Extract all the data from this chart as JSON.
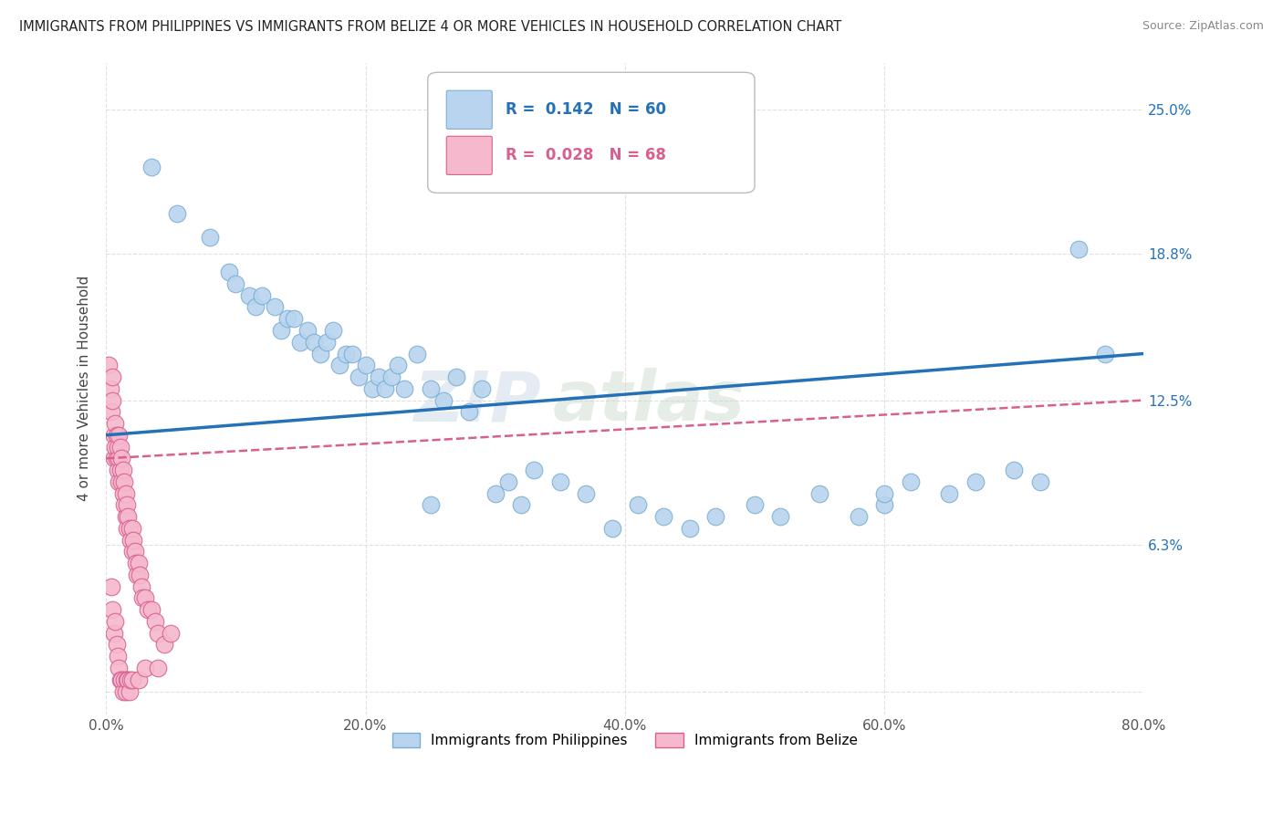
{
  "title": "IMMIGRANTS FROM PHILIPPINES VS IMMIGRANTS FROM BELIZE 4 OR MORE VEHICLES IN HOUSEHOLD CORRELATION CHART",
  "source": "Source: ZipAtlas.com",
  "ylabel": "4 or more Vehicles in Household",
  "watermark_line1": "ZIP",
  "watermark_line2": "atlas",
  "xlim": [
    0.0,
    80.0
  ],
  "ylim": [
    -1.0,
    27.0
  ],
  "yticks": [
    0.0,
    6.3,
    12.5,
    18.8,
    25.0
  ],
  "ytick_labels": [
    "",
    "6.3%",
    "12.5%",
    "18.8%",
    "25.0%"
  ],
  "xticks": [
    0.0,
    20.0,
    40.0,
    60.0,
    80.0
  ],
  "xtick_labels": [
    "0.0%",
    "20.0%",
    "40.0%",
    "60.0%",
    "80.0%"
  ],
  "series": [
    {
      "label": "Immigrants from Philippines",
      "R": 0.142,
      "N": 60,
      "color": "#b8d4ee",
      "edge_color": "#7aafd4",
      "trend_color": "#2471b8",
      "trend_style": "solid",
      "trend_y0": 11.0,
      "trend_y1": 14.5,
      "x": [
        3.5,
        5.5,
        8.0,
        9.5,
        10.0,
        11.0,
        11.5,
        12.0,
        13.0,
        13.5,
        14.0,
        14.5,
        15.0,
        15.5,
        16.0,
        16.5,
        17.0,
        17.5,
        18.0,
        18.5,
        19.0,
        19.5,
        20.0,
        20.5,
        21.0,
        21.5,
        22.0,
        22.5,
        23.0,
        24.0,
        25.0,
        26.0,
        27.0,
        28.0,
        29.0,
        30.0,
        31.0,
        32.0,
        33.0,
        35.0,
        37.0,
        39.0,
        41.0,
        43.0,
        45.0,
        47.0,
        50.0,
        52.0,
        55.0,
        58.0,
        60.0,
        62.0,
        65.0,
        67.0,
        70.0,
        72.0,
        75.0,
        77.0,
        25.0,
        60.0
      ],
      "y": [
        22.5,
        20.5,
        19.5,
        18.0,
        17.5,
        17.0,
        16.5,
        17.0,
        16.5,
        15.5,
        16.0,
        16.0,
        15.0,
        15.5,
        15.0,
        14.5,
        15.0,
        15.5,
        14.0,
        14.5,
        14.5,
        13.5,
        14.0,
        13.0,
        13.5,
        13.0,
        13.5,
        14.0,
        13.0,
        14.5,
        13.0,
        12.5,
        13.5,
        12.0,
        13.0,
        8.5,
        9.0,
        8.0,
        9.5,
        9.0,
        8.5,
        7.0,
        8.0,
        7.5,
        7.0,
        7.5,
        8.0,
        7.5,
        8.5,
        7.5,
        8.0,
        9.0,
        8.5,
        9.0,
        9.5,
        9.0,
        19.0,
        14.5,
        8.0,
        8.5
      ]
    },
    {
      "label": "Immigrants from Belize",
      "R": 0.028,
      "N": 68,
      "color": "#f5b8cc",
      "edge_color": "#d86090",
      "trend_color": "#d86090",
      "trend_style": "dashed",
      "trend_y0": 10.0,
      "trend_y1": 12.5,
      "x": [
        0.2,
        0.3,
        0.4,
        0.5,
        0.5,
        0.6,
        0.6,
        0.7,
        0.7,
        0.8,
        0.8,
        0.9,
        0.9,
        1.0,
        1.0,
        1.0,
        1.1,
        1.1,
        1.2,
        1.2,
        1.3,
        1.3,
        1.4,
        1.4,
        1.5,
        1.5,
        1.6,
        1.6,
        1.7,
        1.8,
        1.9,
        2.0,
        2.0,
        2.1,
        2.2,
        2.3,
        2.4,
        2.5,
        2.6,
        2.7,
        2.8,
        3.0,
        3.2,
        3.5,
        3.8,
        4.0,
        4.5,
        5.0,
        0.4,
        0.5,
        0.6,
        0.7,
        0.8,
        0.9,
        1.0,
        1.1,
        1.2,
        1.3,
        1.4,
        1.5,
        1.6,
        1.7,
        1.8,
        1.9,
        2.0,
        2.5,
        3.0,
        4.0
      ],
      "y": [
        14.0,
        13.0,
        12.0,
        13.5,
        12.5,
        11.0,
        10.0,
        11.5,
        10.5,
        11.0,
        10.0,
        10.5,
        9.5,
        11.0,
        10.0,
        9.0,
        10.5,
        9.5,
        9.0,
        10.0,
        9.5,
        8.5,
        9.0,
        8.0,
        8.5,
        7.5,
        8.0,
        7.0,
        7.5,
        7.0,
        6.5,
        7.0,
        6.0,
        6.5,
        6.0,
        5.5,
        5.0,
        5.5,
        5.0,
        4.5,
        4.0,
        4.0,
        3.5,
        3.5,
        3.0,
        2.5,
        2.0,
        2.5,
        4.5,
        3.5,
        2.5,
        3.0,
        2.0,
        1.5,
        1.0,
        0.5,
        0.5,
        0.0,
        0.5,
        0.0,
        0.5,
        0.5,
        0.0,
        0.5,
        0.5,
        0.5,
        1.0,
        1.0
      ]
    }
  ],
  "legend_border_color": "#bbbbbb",
  "grid_color": "#e0e0e0",
  "background_color": "#ffffff"
}
